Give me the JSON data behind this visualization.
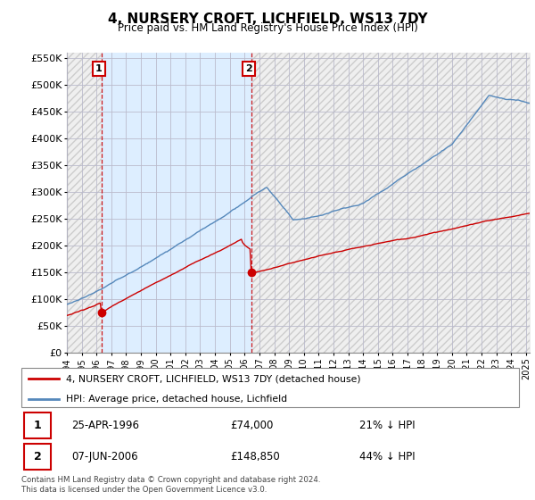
{
  "title": "4, NURSERY CROFT, LICHFIELD, WS13 7DY",
  "subtitle": "Price paid vs. HM Land Registry's House Price Index (HPI)",
  "sale1_date": "25-APR-1996",
  "sale1_price": 74000,
  "sale1_pct": "21% ↓ HPI",
  "sale2_date": "07-JUN-2006",
  "sale2_price": 148850,
  "sale2_pct": "44% ↓ HPI",
  "legend_red": "4, NURSERY CROFT, LICHFIELD, WS13 7DY (detached house)",
  "legend_blue": "HPI: Average price, detached house, Lichfield",
  "footer": "Contains HM Land Registry data © Crown copyright and database right 2024.\nThis data is licensed under the Open Government Licence v3.0.",
  "red_color": "#cc0000",
  "blue_color": "#5588bb",
  "shade_color": "#ddeeff",
  "hatch_color": "#e0e0e0",
  "grid_color": "#bbbbcc",
  "annotation_box_color": "#cc0000",
  "ylim_min": 0,
  "ylim_max": 560000,
  "yticks": [
    0,
    50000,
    100000,
    150000,
    200000,
    250000,
    300000,
    350000,
    400000,
    450000,
    500000,
    550000
  ],
  "ytick_labels": [
    "£0",
    "£50K",
    "£100K",
    "£150K",
    "£200K",
    "£250K",
    "£300K",
    "£350K",
    "£400K",
    "£450K",
    "£500K",
    "£550K"
  ],
  "xticks": [
    1994,
    1995,
    1996,
    1997,
    1998,
    1999,
    2000,
    2001,
    2002,
    2003,
    2004,
    2005,
    2006,
    2007,
    2008,
    2009,
    2010,
    2011,
    2012,
    2013,
    2014,
    2015,
    2016,
    2017,
    2018,
    2019,
    2020,
    2021,
    2022,
    2023,
    2024,
    2025
  ],
  "sale1_x": 1996.32,
  "sale2_x": 2006.44,
  "xmin": 1994.0,
  "xmax": 2025.25
}
